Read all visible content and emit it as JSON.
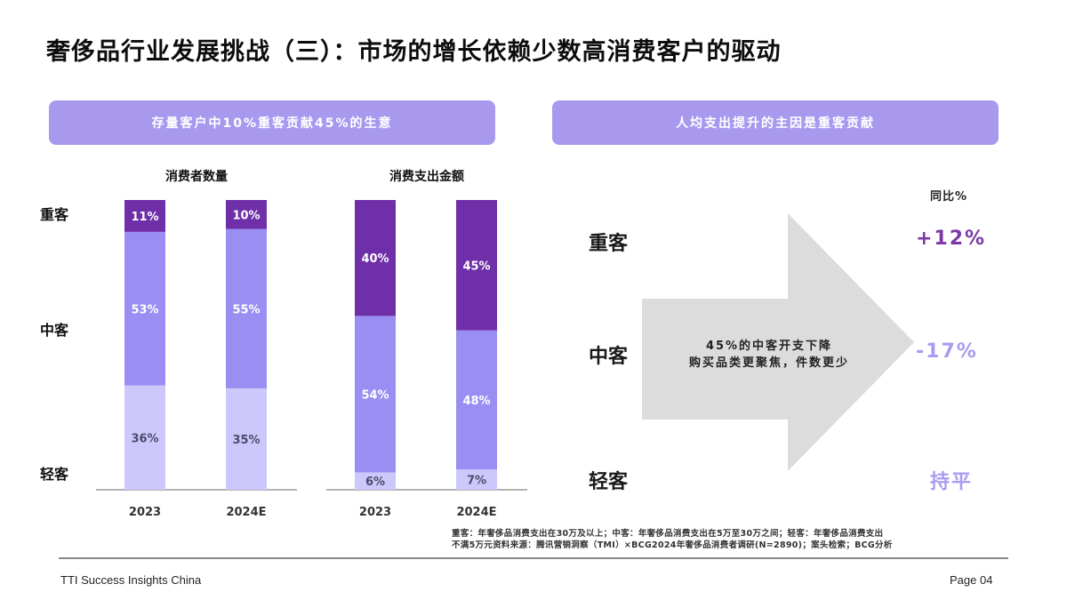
{
  "title": "奢侈品行业发展挑战（三）：市场的增长依赖少数高消费客户的驱动",
  "left_banner": "存量客户中10%重客贡献45%的生意",
  "right_banner": "人均支出提升的主因是重客贡献",
  "row_labels": [
    "重客",
    "中客",
    "轻客"
  ],
  "chart_data": [
    {
      "type": "bar",
      "stacked": true,
      "title": "消费者数量",
      "categories": [
        "2023",
        "2024E"
      ],
      "series": [
        {
          "name": "轻客",
          "values": [
            36,
            35
          ],
          "labels": [
            "36%",
            "35%"
          ],
          "color": "#ccc8fb"
        },
        {
          "name": "中客",
          "values": [
            53,
            55
          ],
          "labels": [
            "53%",
            "55%"
          ],
          "color": "#9b8ef2"
        },
        {
          "name": "重客",
          "values": [
            11,
            10
          ],
          "labels": [
            "11%",
            "10%"
          ],
          "color": "#6f2fa8"
        }
      ]
    },
    {
      "type": "bar",
      "stacked": true,
      "title": "消费支出金额",
      "categories": [
        "2023",
        "2024E"
      ],
      "series": [
        {
          "name": "轻客",
          "values": [
            6,
            7
          ],
          "labels": [
            "6%",
            "7%"
          ],
          "color": "#ccc8fb"
        },
        {
          "name": "中客",
          "values": [
            54,
            48
          ],
          "labels": [
            "54%",
            "48%"
          ],
          "color": "#9b8ef2"
        },
        {
          "name": "重客",
          "values": [
            40,
            45
          ],
          "labels": [
            "40%",
            "45%"
          ],
          "color": "#6f2fa8"
        }
      ]
    }
  ],
  "right_panel": {
    "yoy_header": "同比%",
    "rows": [
      {
        "label": "重客",
        "value": "+12%",
        "color": "#7b3aa6"
      },
      {
        "label": "中客",
        "value": "-17%",
        "color": "#a89cf0"
      },
      {
        "label": "轻客",
        "value": "持平",
        "color": "#a89cf0"
      }
    ],
    "arrow_text_line1": "45%的中客开支下降",
    "arrow_text_line2": "购买品类更聚焦，件数更少"
  },
  "footnote_line1": "重客：年奢侈品消费支出在30万及以上；中客：年奢侈品消费支出在5万至30万之间；轻客：年奢侈品消费支出",
  "footnote_line2": "不满5万元资料来源：腾讯营销洞察（TMI）×BCG2024年奢侈品消费者调研(N=2890)；案头检索；BCG分析",
  "footer_left": "TTI Success Insights China",
  "footer_right": "Page 04"
}
